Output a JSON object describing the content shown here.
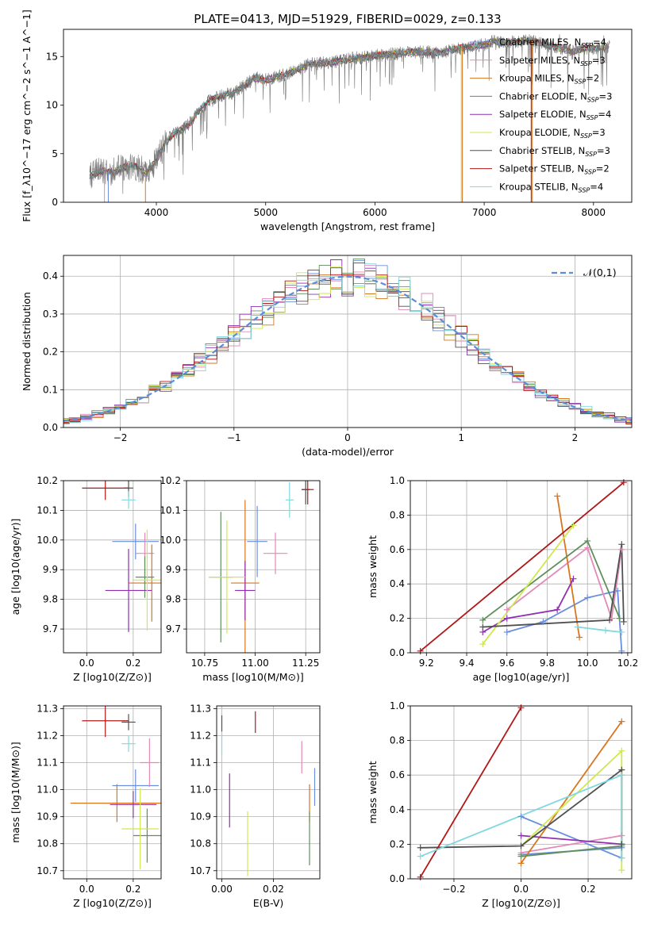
{
  "figure_title": "PLATE=0413, MJD=51929, FIBERID=0029, z=0.133",
  "series_styles": [
    {
      "name": "Chabrier MILES",
      "nssp": "4",
      "color": "#6a8fdc"
    },
    {
      "name": "Salpeter MILES",
      "nssp": "3",
      "color": "#e289b8"
    },
    {
      "name": "Kroupa MILES",
      "nssp": "2",
      "color": "#d8761e"
    },
    {
      "name": "Chabrier ELODIE",
      "nssp": "3",
      "color": "#5f8f5a"
    },
    {
      "name": "Salpeter ELODIE",
      "nssp": "4",
      "color": "#9030b0"
    },
    {
      "name": "Kroupa ELODIE",
      "nssp": "3",
      "color": "#cfe84e"
    },
    {
      "name": "Chabrier STELIB",
      "nssp": "3",
      "color": "#505050"
    },
    {
      "name": "Salpeter STELIB",
      "nssp": "2",
      "color": "#b01818"
    },
    {
      "name": "Kroupa STELIB",
      "nssp": "4",
      "color": "#80d8e0"
    }
  ],
  "chart_data": [
    {
      "id": "spectrum",
      "type": "line",
      "xlabel": "wavelength [Angstrom, rest frame]",
      "ylabel": "Flux [f_λ10^−17 erg cm^−2 s^−1 A^−1]",
      "xlim": [
        3150,
        8350
      ],
      "ylim": [
        0,
        17.8
      ],
      "xticks": [
        4000,
        5000,
        6000,
        7000,
        8000
      ],
      "yticks": [
        0,
        5,
        10,
        15
      ],
      "grid": false,
      "legend": "upper right",
      "data_curve_color": "#777777",
      "continuum": {
        "x": [
          3390,
          3500,
          3600,
          3700,
          3800,
          3900,
          4000,
          4100,
          4200,
          4300,
          4400,
          4500,
          4600,
          4700,
          4800,
          4900,
          5000,
          5200,
          5400,
          5600,
          5800,
          6000,
          6200,
          6400,
          6600,
          6800,
          7000,
          7100,
          7200,
          7400,
          7600,
          7800,
          8000,
          8150
        ],
        "y": [
          2.7,
          3.2,
          3.1,
          3.6,
          3.8,
          3.0,
          4.2,
          6.5,
          7.3,
          8.0,
          9.6,
          10.6,
          11.0,
          11.2,
          12.0,
          12.8,
          12.6,
          13.2,
          14.2,
          14.4,
          14.8,
          15.1,
          15.3,
          15.5,
          15.4,
          15.9,
          16.2,
          16.6,
          16.4,
          16.7,
          16.1,
          15.6,
          15.9,
          16.0
        ]
      }
    },
    {
      "id": "residuals",
      "type": "bar",
      "xlabel": "(data-model)/error",
      "ylabel": "Normed distribution",
      "xlim": [
        -2.5,
        2.5
      ],
      "ylim": [
        0,
        0.455
      ],
      "xticks": [
        -2,
        -1,
        0,
        1,
        2
      ],
      "yticks": [
        0.0,
        0.1,
        0.2,
        0.3,
        0.4
      ],
      "grid": true,
      "legend": "upper right",
      "legend_entries": [
        "𝒩(0,1)"
      ],
      "gaussian": {
        "mean": 0,
        "sigma": 1,
        "color": "#5b8dd8"
      },
      "bin_width": 0.1
    },
    {
      "id": "age_vs_Z",
      "type": "scatter",
      "xlabel": "Z [log10(Z/Z⊙)]",
      "ylabel": "age  [log10(age/yr)]",
      "xlim": [
        -0.1,
        0.32
      ],
      "ylim": [
        9.62,
        10.2
      ],
      "xticks": [
        0.0,
        0.2
      ],
      "yticks": [
        9.7,
        9.8,
        9.9,
        10.0,
        10.1,
        10.2
      ],
      "grid": true,
      "points": [
        {
          "x": 0.21,
          "y": 9.995,
          "xerr": 0.1,
          "yerr": 0.06
        },
        {
          "x": 0.25,
          "y": 9.955,
          "xerr": 0.04,
          "yerr": 0.07
        },
        {
          "x": 0.28,
          "y": 9.855,
          "xerr": 0.1,
          "yerr": 0.13
        },
        {
          "x": 0.25,
          "y": 9.875,
          "xerr": 0.04,
          "yerr": 0.07
        },
        {
          "x": 0.18,
          "y": 9.83,
          "xerr": 0.1,
          "yerr": 0.14
        },
        {
          "x": 0.26,
          "y": 9.865,
          "xerr": 0.06,
          "yerr": 0.17
        },
        {
          "x": 0.18,
          "y": 10.175,
          "xerr": 0.02,
          "yerr": 0.03
        },
        {
          "x": 0.08,
          "y": 10.175,
          "xerr": 0.1,
          "yerr": 0.04
        },
        {
          "x": 0.18,
          "y": 10.135,
          "xerr": 0.03,
          "yerr": 0.03
        }
      ]
    },
    {
      "id": "age_vs_mass",
      "type": "scatter",
      "xlabel": "mass [log10(M/M⊙)]",
      "ylabel": "",
      "xlim": [
        10.66,
        11.32
      ],
      "ylim": [
        9.62,
        10.2
      ],
      "xticks": [
        10.75,
        11.0,
        11.25
      ],
      "yticks": [
        9.7,
        9.8,
        9.9,
        10.0,
        10.1,
        10.2
      ],
      "grid": true,
      "points": [
        {
          "x": 11.01,
          "y": 9.995,
          "xerr": 0.05,
          "yerr": 0.12
        },
        {
          "x": 11.1,
          "y": 9.955,
          "xerr": 0.06,
          "yerr": 0.07
        },
        {
          "x": 10.95,
          "y": 9.855,
          "xerr": 0.07,
          "yerr": 0.28
        },
        {
          "x": 10.83,
          "y": 9.875,
          "xerr": 0.06,
          "yerr": 0.22
        },
        {
          "x": 10.95,
          "y": 9.83,
          "xerr": 0.05,
          "yerr": 0.1
        },
        {
          "x": 10.86,
          "y": 9.875,
          "xerr": 0.09,
          "yerr": 0.19
        },
        {
          "x": 11.25,
          "y": 10.17,
          "xerr": 0.02,
          "yerr": 0.05
        },
        {
          "x": 11.26,
          "y": 10.17,
          "xerr": 0.03,
          "yerr": 0.05
        },
        {
          "x": 11.17,
          "y": 10.135,
          "xerr": 0.02,
          "yerr": 0.06
        }
      ]
    },
    {
      "id": "mass_weight_vs_age",
      "type": "line",
      "xlabel": "age  [log10(age/yr)]",
      "ylabel": "mass weight",
      "xlim": [
        9.12,
        10.22
      ],
      "ylim": [
        0,
        1
      ],
      "xticks": [
        9.2,
        9.4,
        9.6,
        9.8,
        10.0,
        10.2
      ],
      "yticks": [
        0.0,
        0.2,
        0.4,
        0.6,
        0.8,
        1.0
      ],
      "grid": true,
      "series": [
        {
          "x": [
            9.6,
            9.78,
            10.0,
            10.15,
            10.17
          ],
          "y": [
            0.12,
            0.18,
            0.32,
            0.36,
            0.01
          ]
        },
        {
          "x": [
            9.6,
            10.0,
            10.12,
            10.17
          ],
          "y": [
            0.25,
            0.61,
            0.2,
            0.6
          ]
        },
        {
          "x": [
            9.85,
            9.96
          ],
          "y": [
            0.91,
            0.09
          ]
        },
        {
          "x": [
            9.48,
            10.0,
            10.16
          ],
          "y": [
            0.19,
            0.65,
            0.2
          ]
        },
        {
          "x": [
            9.48,
            9.6,
            9.85,
            9.93
          ],
          "y": [
            0.12,
            0.2,
            0.25,
            0.43
          ]
        },
        {
          "x": [
            9.48,
            9.93
          ],
          "y": [
            0.05,
            0.74
          ]
        },
        {
          "x": [
            9.48,
            10.11,
            10.17,
            10.18
          ],
          "y": [
            0.15,
            0.19,
            0.63,
            0.18
          ]
        },
        {
          "x": [
            9.17,
            10.18
          ],
          "y": [
            0.01,
            0.99
          ]
        },
        {
          "x": [
            9.95,
            10.09,
            10.17
          ],
          "y": [
            0.15,
            0.13,
            0.12
          ]
        }
      ]
    },
    {
      "id": "mass_vs_Z",
      "type": "scatter",
      "xlabel": "Z [log10(Z/Z⊙)]",
      "ylabel": "mass [log10(M/M⊙)]",
      "xlim": [
        -0.1,
        0.32
      ],
      "ylim": [
        10.67,
        11.31
      ],
      "xticks": [
        0.0,
        0.2
      ],
      "yticks": [
        10.7,
        10.8,
        10.9,
        11.0,
        11.1,
        11.2,
        11.3
      ],
      "grid": true,
      "points": [
        {
          "x": 0.21,
          "y": 11.015,
          "xerr": 0.1,
          "yerr": 0.06
        },
        {
          "x": 0.27,
          "y": 11.1,
          "xerr": 0.04,
          "yerr": 0.09
        },
        {
          "x": 0.13,
          "y": 10.95,
          "xerr": 0.2,
          "yerr": 0.07
        },
        {
          "x": 0.26,
          "y": 10.83,
          "xerr": 0.06,
          "yerr": 0.1
        },
        {
          "x": 0.2,
          "y": 10.945,
          "xerr": 0.1,
          "yerr": 0.05
        },
        {
          "x": 0.23,
          "y": 10.855,
          "xerr": 0.08,
          "yerr": 0.15
        },
        {
          "x": 0.18,
          "y": 11.25,
          "xerr": 0.03,
          "yerr": 0.03
        },
        {
          "x": 0.08,
          "y": 11.255,
          "xerr": 0.1,
          "yerr": 0.06
        },
        {
          "x": 0.18,
          "y": 11.17,
          "xerr": 0.03,
          "yerr": 0.03
        }
      ]
    },
    {
      "id": "mass_vs_ebv",
      "type": "scatter",
      "xlabel": "E(B-V)",
      "ylabel": "",
      "xlim": [
        -0.002,
        0.038
      ],
      "ylim": [
        10.67,
        11.31
      ],
      "xticks": [
        0.0,
        0.02
      ],
      "yticks": [
        10.7,
        10.8,
        10.9,
        11.0,
        11.1,
        11.2,
        11.3
      ],
      "grid": true,
      "points": [
        {
          "x": 0.036,
          "y": 11.01,
          "xerr": 0,
          "yerr": 0.07
        },
        {
          "x": 0.031,
          "y": 11.12,
          "xerr": 0,
          "yerr": 0.06
        },
        {
          "x": 0.034,
          "y": 10.95,
          "xerr": 0,
          "yerr": 0.07
        },
        {
          "x": 0.034,
          "y": 10.82,
          "xerr": 0,
          "yerr": 0.1
        },
        {
          "x": 0.003,
          "y": 10.96,
          "xerr": 0,
          "yerr": 0.1
        },
        {
          "x": 0.01,
          "y": 10.8,
          "xerr": 0,
          "yerr": 0.12
        },
        {
          "x": 0.0,
          "y": 11.245,
          "xerr": 0,
          "yerr": 0.03
        },
        {
          "x": 0.013,
          "y": 11.25,
          "xerr": 0,
          "yerr": 0.04
        },
        {
          "x": 0.0,
          "y": 11.17,
          "xerr": 0,
          "yerr": 0.04
        }
      ]
    },
    {
      "id": "mass_weight_vs_Z",
      "type": "line",
      "xlabel": "Z [log10(Z/Z⊙)]",
      "ylabel": "mass weight",
      "xlim": [
        -0.33,
        0.33
      ],
      "ylim": [
        0,
        1
      ],
      "xticks": [
        -0.2,
        0.0,
        0.2
      ],
      "yticks": [
        0.0,
        0.2,
        0.4,
        0.6,
        0.8,
        1.0
      ],
      "grid": true,
      "series": [
        {
          "x": [
            0.0,
            0.3,
            0.3,
            0.0
          ],
          "y": [
            0.36,
            0.12,
            0.18,
            0.14
          ]
        },
        {
          "x": [
            0.0,
            0.3,
            0.3
          ],
          "y": [
            0.15,
            0.25,
            0.6
          ]
        },
        {
          "x": [
            0.3,
            0.0
          ],
          "y": [
            0.91,
            0.09
          ]
        },
        {
          "x": [
            0.0,
            0.3
          ],
          "y": [
            0.13,
            0.19
          ]
        },
        {
          "x": [
            0.0,
            0.3
          ],
          "y": [
            0.25,
            0.2
          ]
        },
        {
          "x": [
            0.0,
            0.3,
            0.3
          ],
          "y": [
            0.19,
            0.74,
            0.05
          ]
        },
        {
          "x": [
            -0.3,
            0.0,
            0.3,
            0.3
          ],
          "y": [
            0.18,
            0.19,
            0.63,
            0.2
          ]
        },
        {
          "x": [
            -0.3,
            0.0
          ],
          "y": [
            0.01,
            0.99
          ]
        },
        {
          "x": [
            -0.3,
            0.3,
            0.3
          ],
          "y": [
            0.13,
            0.6,
            0.12
          ]
        }
      ]
    }
  ]
}
